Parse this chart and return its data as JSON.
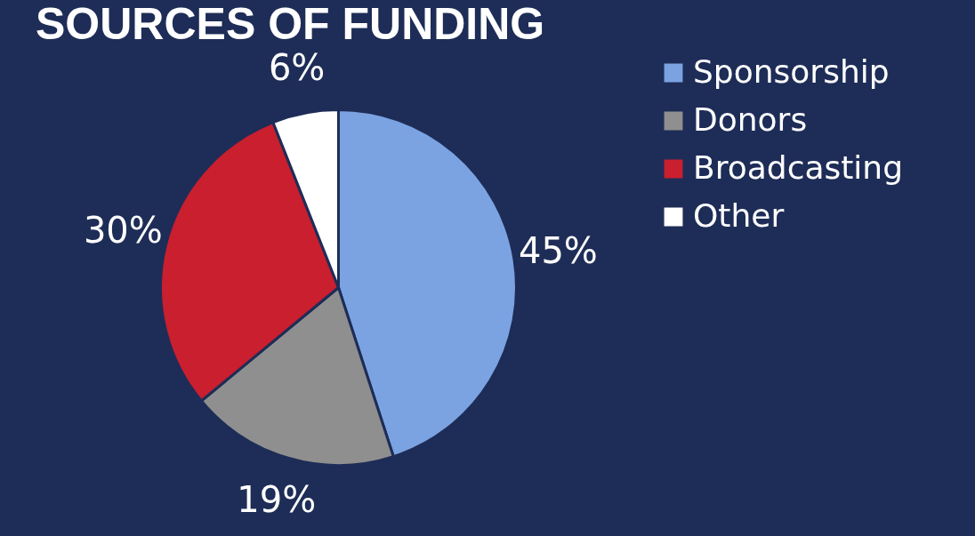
{
  "chart_data": {
    "type": "pie",
    "title": "SOURCES OF FUNDING",
    "categories": [
      "Sponsorship",
      "Donors",
      "Broadcasting",
      "Other"
    ],
    "values": [
      45,
      19,
      30,
      6
    ],
    "value_labels": [
      "45%",
      "19%",
      "30%",
      "6%"
    ],
    "colors": [
      "#7ba3e2",
      "#8f8f8f",
      "#c91f2f",
      "#ffffff"
    ],
    "legend": "right"
  }
}
